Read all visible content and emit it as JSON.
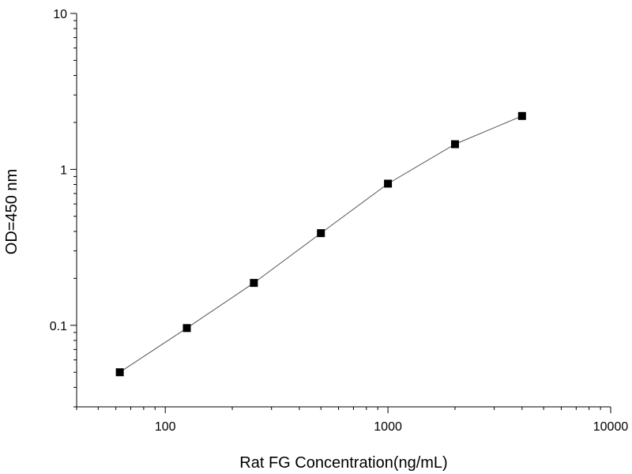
{
  "chart_data": {
    "type": "scatter",
    "title": "",
    "xlabel": "Rat FG Concentration(ng/mL)",
    "ylabel": "OD=450 nm",
    "x_scale": "log",
    "y_scale": "log",
    "xlim": [
      40,
      10000
    ],
    "ylim": [
      0.03,
      10
    ],
    "x_ticks": [
      {
        "value": 100,
        "label": "100"
      },
      {
        "value": 1000,
        "label": "1000"
      },
      {
        "value": 10000,
        "label": "10000"
      }
    ],
    "y_ticks": [
      {
        "value": 0.1,
        "label": "0.1"
      },
      {
        "value": 1,
        "label": "1"
      },
      {
        "value": 10,
        "label": "10"
      }
    ],
    "grid": false,
    "legend": "none",
    "series": [
      {
        "marker": "square",
        "connected": true,
        "color": "#000000",
        "line_color": "#555555",
        "points": [
          {
            "x": 62.5,
            "y": 0.05
          },
          {
            "x": 125,
            "y": 0.096
          },
          {
            "x": 250,
            "y": 0.187
          },
          {
            "x": 500,
            "y": 0.39
          },
          {
            "x": 1000,
            "y": 0.81
          },
          {
            "x": 2000,
            "y": 1.45
          },
          {
            "x": 4000,
            "y": 2.2
          }
        ]
      }
    ]
  }
}
